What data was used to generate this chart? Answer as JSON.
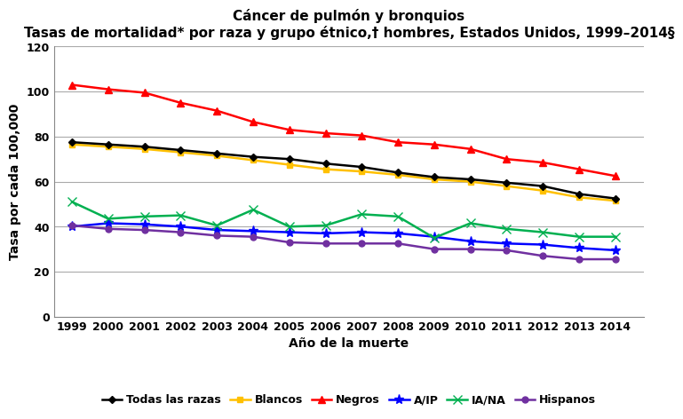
{
  "title_line1": "Cáncer de pulmón y bronquios",
  "title_line2": "Tasas de mortalidad* por raza y grupo étnico,† hombres, Estados Unidos, 1999–2014§",
  "xlabel": "Año de la muerte",
  "ylabel": "Tasa por cada 100,000",
  "years": [
    1999,
    2000,
    2001,
    2002,
    2003,
    2004,
    2005,
    2006,
    2007,
    2008,
    2009,
    2010,
    2011,
    2012,
    2013,
    2014
  ],
  "series": {
    "Todas las razas": {
      "values": [
        77.5,
        76.5,
        75.5,
        74.0,
        72.5,
        71.0,
        70.0,
        68.0,
        66.5,
        64.0,
        62.0,
        61.0,
        59.5,
        58.0,
        54.5,
        52.5
      ],
      "color": "#000000",
      "marker": "D",
      "markersize": 4,
      "linewidth": 1.8,
      "zorder": 5
    },
    "Blancos": {
      "values": [
        76.5,
        75.5,
        74.5,
        73.0,
        71.5,
        69.5,
        67.5,
        65.5,
        64.5,
        63.0,
        61.0,
        60.0,
        58.0,
        56.0,
        53.0,
        51.5
      ],
      "color": "#FFC000",
      "marker": "s",
      "markersize": 5,
      "linewidth": 1.8,
      "zorder": 4
    },
    "Negros": {
      "values": [
        103.0,
        101.0,
        99.5,
        95.0,
        91.5,
        86.5,
        83.0,
        81.5,
        80.5,
        77.5,
        76.5,
        74.5,
        70.0,
        68.5,
        65.5,
        62.5
      ],
      "color": "#FF0000",
      "marker": "^",
      "markersize": 6,
      "linewidth": 1.8,
      "zorder": 4
    },
    "A/IP": {
      "values": [
        40.0,
        41.5,
        41.0,
        40.0,
        38.5,
        38.0,
        37.5,
        37.0,
        37.5,
        37.0,
        35.5,
        33.5,
        32.5,
        32.0,
        30.5,
        29.5
      ],
      "color": "#0000FF",
      "marker": "*",
      "markersize": 8,
      "linewidth": 1.8,
      "zorder": 4
    },
    "IA/NA": {
      "values": [
        51.0,
        43.5,
        44.5,
        45.0,
        40.5,
        47.5,
        40.0,
        40.5,
        45.5,
        44.5,
        35.0,
        41.5,
        39.0,
        37.5,
        35.5,
        35.5
      ],
      "color": "#00B050",
      "marker": "x",
      "markersize": 7,
      "linewidth": 1.8,
      "zorder": 4
    },
    "Hispanos": {
      "values": [
        40.5,
        39.0,
        38.5,
        37.5,
        36.0,
        35.5,
        33.0,
        32.5,
        32.5,
        32.5,
        30.0,
        30.0,
        29.5,
        27.0,
        25.5,
        25.5
      ],
      "color": "#7030A0",
      "marker": "o",
      "markersize": 5,
      "linewidth": 1.8,
      "zorder": 4
    }
  },
  "legend_order": [
    "Todas las razas",
    "Blancos",
    "Negros",
    "A/IP",
    "IA/NA",
    "Hispanos"
  ],
  "ylim": [
    0,
    120
  ],
  "yticks": [
    0,
    20,
    40,
    60,
    80,
    100,
    120
  ],
  "background_color": "#FFFFFF",
  "grid_color": "#AAAAAA",
  "title_fontsize": 11,
  "axis_label_fontsize": 10,
  "tick_fontsize": 9,
  "legend_fontsize": 9
}
